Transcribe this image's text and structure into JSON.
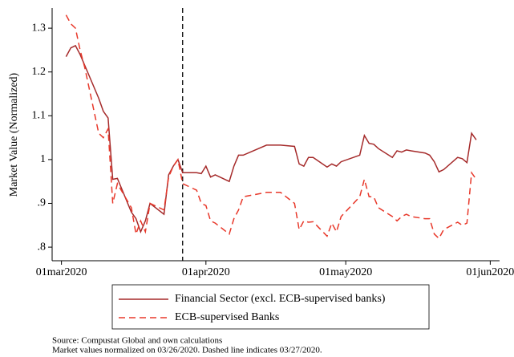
{
  "chart_data": {
    "type": "line",
    "y_label": "Market Value (Normalized)",
    "x": [
      "2020-03-02",
      "2020-03-03",
      "2020-03-04",
      "2020-03-05",
      "2020-03-06",
      "2020-03-09",
      "2020-03-10",
      "2020-03-11",
      "2020-03-12",
      "2020-03-13",
      "2020-03-16",
      "2020-03-17",
      "2020-03-18",
      "2020-03-19",
      "2020-03-20",
      "2020-03-23",
      "2020-03-24",
      "2020-03-25",
      "2020-03-26",
      "2020-03-27",
      "2020-03-30",
      "2020-03-31",
      "2020-04-01",
      "2020-04-02",
      "2020-04-03",
      "2020-04-06",
      "2020-04-07",
      "2020-04-08",
      "2020-04-09",
      "2020-04-14",
      "2020-04-15",
      "2020-04-16",
      "2020-04-17",
      "2020-04-20",
      "2020-04-21",
      "2020-04-22",
      "2020-04-23",
      "2020-04-24",
      "2020-04-27",
      "2020-04-28",
      "2020-04-29",
      "2020-04-30",
      "2020-05-04",
      "2020-05-05",
      "2020-05-06",
      "2020-05-07",
      "2020-05-08",
      "2020-05-11",
      "2020-05-12",
      "2020-05-13",
      "2020-05-14",
      "2020-05-15",
      "2020-05-18",
      "2020-05-19",
      "2020-05-20",
      "2020-05-21",
      "2020-05-22",
      "2020-05-25",
      "2020-05-26",
      "2020-05-27",
      "2020-05-28",
      "2020-05-29"
    ],
    "series": [
      {
        "name": "Financial Sector (excl. ECB-supervised banks)",
        "color": "#a52a2a",
        "dash": false,
        "values": [
          1.235,
          1.255,
          1.26,
          1.24,
          1.215,
          1.14,
          1.11,
          1.095,
          0.955,
          0.957,
          0.88,
          0.865,
          0.835,
          0.86,
          0.9,
          0.875,
          0.965,
          0.985,
          1.0,
          0.97,
          0.97,
          0.968,
          0.985,
          0.96,
          0.965,
          0.95,
          0.985,
          1.01,
          1.01,
          1.033,
          1.033,
          1.033,
          1.033,
          1.03,
          0.99,
          0.985,
          1.005,
          1.005,
          0.983,
          0.99,
          0.985,
          0.995,
          1.01,
          1.055,
          1.037,
          1.035,
          1.025,
          1.005,
          1.02,
          1.017,
          1.022,
          1.02,
          1.015,
          1.01,
          0.995,
          0.972,
          0.977,
          1.005,
          1.002,
          0.993,
          1.06,
          1.045
        ]
      },
      {
        "name": "ECB-supervised Banks",
        "color": "#e8382a",
        "dash": true,
        "values": [
          1.33,
          1.31,
          1.3,
          1.25,
          1.21,
          1.06,
          1.05,
          1.07,
          0.9,
          0.945,
          0.89,
          0.83,
          0.86,
          0.835,
          0.9,
          0.885,
          0.96,
          0.985,
          1.0,
          0.945,
          0.93,
          0.9,
          0.895,
          0.86,
          0.855,
          0.83,
          0.865,
          0.885,
          0.915,
          0.925,
          0.925,
          0.925,
          0.925,
          0.9,
          0.84,
          0.86,
          0.857,
          0.858,
          0.825,
          0.855,
          0.835,
          0.87,
          0.915,
          0.955,
          0.915,
          0.915,
          0.89,
          0.87,
          0.86,
          0.87,
          0.875,
          0.87,
          0.865,
          0.865,
          0.83,
          0.82,
          0.84,
          0.857,
          0.85,
          0.855,
          0.97,
          0.955
        ]
      }
    ],
    "xlim": [
      "2020-02-28",
      "2020-06-03"
    ],
    "xticks": [
      {
        "value": "2020-03-01",
        "label": "01mar2020"
      },
      {
        "value": "2020-04-01",
        "label": "01apr2020"
      },
      {
        "value": "2020-05-01",
        "label": "01may2020"
      },
      {
        "value": "2020-06-01",
        "label": "01jun2020"
      }
    ],
    "ylim": [
      0.769,
      1.346
    ],
    "yticks": [
      {
        "value": 0.8,
        "label": ".8"
      },
      {
        "value": 0.9,
        "label": ".9"
      },
      1,
      1.1,
      1.2,
      1.3
    ],
    "vline_x": "2020-03-27",
    "notes": [
      "Source: Compustat Global and own calculations",
      "Market values normalized on 03/26/2020. Dashed line indicates 03/27/2020."
    ]
  }
}
